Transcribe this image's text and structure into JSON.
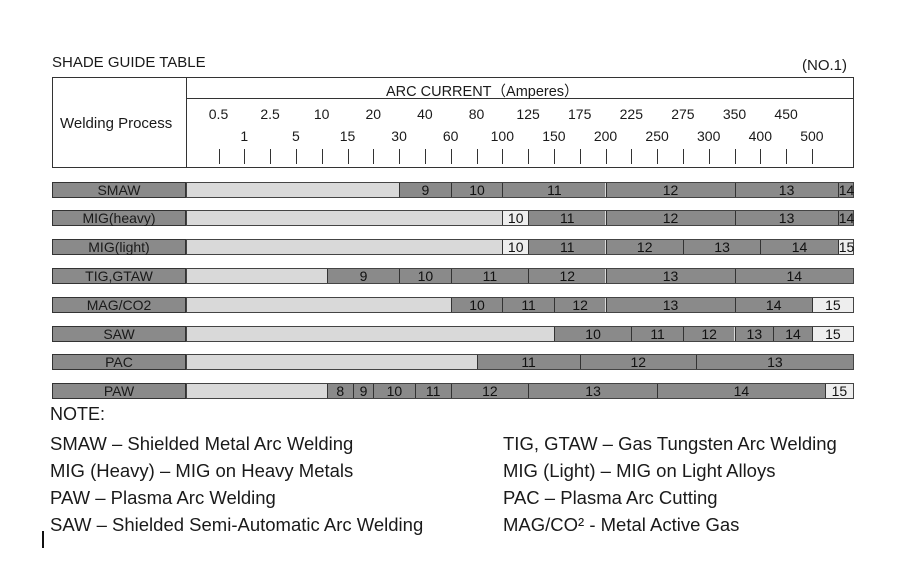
{
  "title": "SHADE GUIDE TABLE",
  "table_no": "(NO.1)",
  "arc_current_title": "ARC CURRENT（Amperes）",
  "process_header": "Welding Process",
  "amperes_top": [
    "0.5",
    "2.5",
    "10",
    "20",
    "40",
    "80",
    "125",
    "175",
    "225",
    "275",
    "350",
    "450"
  ],
  "amperes_bottom": [
    "1",
    "5",
    "15",
    "30",
    "60",
    "100",
    "150",
    "200",
    "250",
    "300",
    "400",
    "500"
  ],
  "rows": [
    {
      "label": "SMAW",
      "segments": [
        {
          "text": "9",
          "start": 7,
          "end": 9,
          "tone": "dark"
        },
        {
          "text": "10",
          "start": 9,
          "end": 11,
          "tone": "dark"
        },
        {
          "text": "11",
          "start": 11,
          "end": 15,
          "tone": "dark"
        },
        {
          "text": "12",
          "start": 15,
          "end": 20,
          "tone": "dark"
        },
        {
          "text": "13",
          "start": 20,
          "end": 24,
          "tone": "dark"
        },
        {
          "text": "14",
          "start": 24,
          "end": 25.6,
          "tone": "dark"
        }
      ]
    },
    {
      "label": "MIG(heavy)",
      "segments": [
        {
          "text": "10",
          "start": 11,
          "end": 12,
          "tone": "light"
        },
        {
          "text": "11",
          "start": 12,
          "end": 15,
          "tone": "dark"
        },
        {
          "text": "12",
          "start": 15,
          "end": 20,
          "tone": "dark"
        },
        {
          "text": "13",
          "start": 20,
          "end": 24,
          "tone": "dark"
        },
        {
          "text": "14",
          "start": 24,
          "end": 25.6,
          "tone": "dark"
        }
      ]
    },
    {
      "label": "MIG(light)",
      "segments": [
        {
          "text": "10",
          "start": 11,
          "end": 12,
          "tone": "light"
        },
        {
          "text": "11",
          "start": 12,
          "end": 15,
          "tone": "dark"
        },
        {
          "text": "12",
          "start": 15,
          "end": 18,
          "tone": "dark"
        },
        {
          "text": "13",
          "start": 18,
          "end": 21,
          "tone": "dark"
        },
        {
          "text": "14",
          "start": 21,
          "end": 24,
          "tone": "dark"
        },
        {
          "text": "15",
          "start": 24,
          "end": 25.6,
          "tone": "light"
        }
      ]
    },
    {
      "label": "TIG,GTAW",
      "segments": [
        {
          "text": "9",
          "start": 4.2,
          "end": 7,
          "tone": "dark"
        },
        {
          "text": "10",
          "start": 7,
          "end": 9,
          "tone": "dark"
        },
        {
          "text": "11",
          "start": 9,
          "end": 12,
          "tone": "dark"
        },
        {
          "text": "12",
          "start": 12,
          "end": 15,
          "tone": "dark"
        },
        {
          "text": "13",
          "start": 15,
          "end": 20,
          "tone": "dark"
        },
        {
          "text": "14",
          "start": 20,
          "end": 25.6,
          "tone": "dark"
        }
      ]
    },
    {
      "label": "MAG/CO2",
      "segments": [
        {
          "text": "10",
          "start": 9,
          "end": 11,
          "tone": "dark"
        },
        {
          "text": "11",
          "start": 11,
          "end": 13,
          "tone": "dark"
        },
        {
          "text": "12",
          "start": 13,
          "end": 15,
          "tone": "dark"
        },
        {
          "text": "13",
          "start": 15,
          "end": 20,
          "tone": "dark"
        },
        {
          "text": "14",
          "start": 20,
          "end": 23,
          "tone": "dark"
        },
        {
          "text": "15",
          "start": 23,
          "end": 25.6,
          "tone": "light"
        }
      ]
    },
    {
      "label": "SAW",
      "segments": [
        {
          "text": "10",
          "start": 13,
          "end": 16,
          "tone": "dark"
        },
        {
          "text": "11",
          "start": 16,
          "end": 18,
          "tone": "dark"
        },
        {
          "text": "12",
          "start": 18,
          "end": 20,
          "tone": "dark"
        },
        {
          "text": "13",
          "start": 20,
          "end": 21.5,
          "tone": "dark"
        },
        {
          "text": "14",
          "start": 21.5,
          "end": 23,
          "tone": "dark"
        },
        {
          "text": "15",
          "start": 23,
          "end": 25.6,
          "tone": "light"
        }
      ]
    },
    {
      "label": "PAC",
      "segments": [
        {
          "text": "11",
          "start": 10,
          "end": 14,
          "tone": "dark"
        },
        {
          "text": "12",
          "start": 14,
          "end": 18.5,
          "tone": "dark"
        },
        {
          "text": "13",
          "start": 18.5,
          "end": 25.6,
          "tone": "dark"
        }
      ]
    },
    {
      "label": "PAW",
      "segments": [
        {
          "text": "8",
          "start": 4.2,
          "end": 5.2,
          "tone": "dark"
        },
        {
          "text": "9",
          "start": 5.2,
          "end": 6,
          "tone": "dark"
        },
        {
          "text": "10",
          "start": 6,
          "end": 7.6,
          "tone": "dark"
        },
        {
          "text": "11",
          "start": 7.6,
          "end": 9,
          "tone": "dark"
        },
        {
          "text": "12",
          "start": 9,
          "end": 12,
          "tone": "dark"
        },
        {
          "text": "13",
          "start": 12,
          "end": 17,
          "tone": "dark"
        },
        {
          "text": "14",
          "start": 17,
          "end": 23.5,
          "tone": "dark"
        },
        {
          "text": "15",
          "start": 23.5,
          "end": 25.6,
          "tone": "light"
        }
      ]
    }
  ],
  "note": {
    "title": "NOTE:",
    "left": [
      "SMAW – Shielded Metal Arc Welding",
      "MIG (Heavy) – MIG on Heavy Metals",
      "PAW – Plasma Arc Welding",
      "SAW – Shielded Semi-Automatic Arc Welding"
    ],
    "right": [
      "TIG, GTAW – Gas Tungsten Arc Welding",
      "MIG (Light) – MIG on Light Alloys",
      "PAC – Plasma Arc Cutting",
      "MAG/CO² - Metal Active Gas"
    ]
  }
}
